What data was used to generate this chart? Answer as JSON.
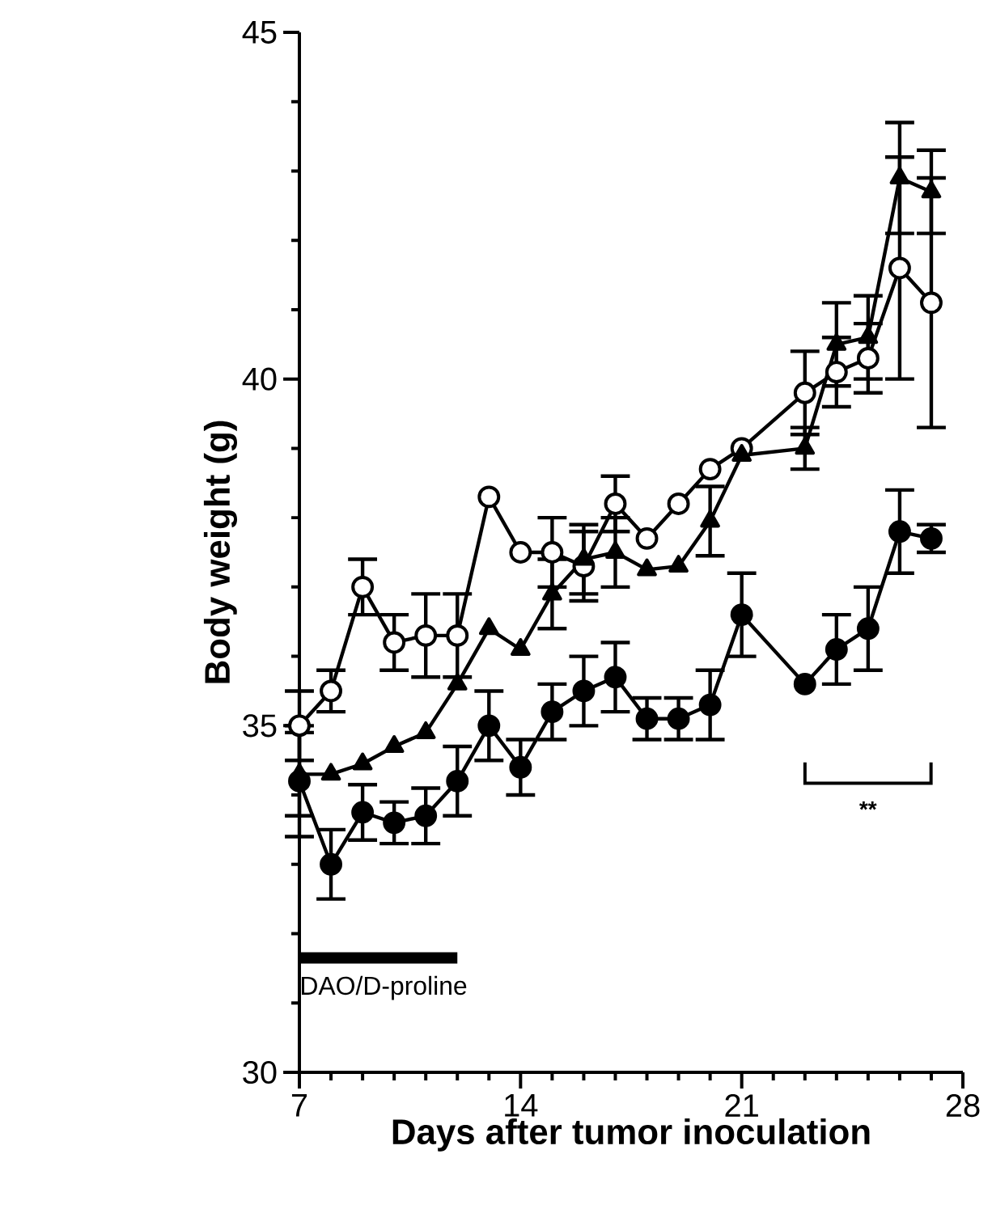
{
  "chart_data": {
    "type": "line",
    "xlabel": "Days after tumor inoculation",
    "ylabel": "Body weight (g)",
    "x": [
      7,
      8,
      9,
      10,
      11,
      12,
      13,
      14,
      15,
      16,
      17,
      18,
      19,
      20,
      21,
      23,
      24,
      25,
      26,
      27
    ],
    "series": [
      {
        "color": "#000000",
        "marker": "circle",
        "values": [
          35.0,
          35.5,
          37.0,
          36.2,
          36.3,
          36.3,
          38.3,
          37.5,
          37.5,
          37.3,
          38.2,
          37.7,
          38.2,
          38.7,
          39.0,
          39.8,
          40.1,
          40.3,
          41.6,
          41.1
        ],
        "errors": [
          0.5,
          0.3,
          0.4,
          0.4,
          0.6,
          0.6,
          null,
          null,
          0.5,
          0.5,
          0.4,
          null,
          null,
          null,
          null,
          0.6,
          0.5,
          0.5,
          1.6,
          1.8
        ]
      },
      {
        "color": "#000000",
        "marker": "triangle",
        "values": [
          34.3,
          34.3,
          34.45,
          34.7,
          34.9,
          35.6,
          36.4,
          36.1,
          36.9,
          37.4,
          37.5,
          37.25,
          37.3,
          37.95,
          38.9,
          39.0,
          40.5,
          40.6,
          42.9,
          42.7
        ],
        "errors": [
          0.6,
          null,
          null,
          null,
          null,
          null,
          null,
          null,
          0.5,
          0.5,
          0.5,
          null,
          null,
          0.5,
          null,
          0.3,
          0.6,
          0.6,
          0.8,
          0.6
        ]
      },
      {
        "color": "#000000",
        "marker": "circle",
        "values": [
          34.2,
          33.0,
          33.75,
          33.6,
          33.7,
          34.2,
          35.0,
          34.4,
          35.2,
          35.5,
          35.7,
          35.1,
          35.1,
          35.3,
          36.6,
          35.6,
          36.1,
          36.4,
          37.8,
          37.7
        ],
        "errors": [
          0.8,
          0.5,
          0.4,
          0.3,
          0.4,
          0.5,
          0.5,
          0.4,
          0.4,
          0.5,
          0.5,
          0.3,
          0.3,
          0.5,
          0.6,
          null,
          0.5,
          0.6,
          0.6,
          0.2
        ]
      },
      {
        "color": "#000000",
        "marker": "none",
        "x": [
          7,
          12
        ],
        "values": [
          31.65,
          31.65
        ]
      }
    ],
    "xlim": [
      7,
      28
    ],
    "xticks": [
      7,
      14,
      21,
      28
    ],
    "ylim": [
      30,
      45
    ],
    "yticks": [
      30,
      35,
      40,
      45
    ],
    "line_style": "solid",
    "annotations": [
      "DAO/D-proline",
      "**"
    ]
  }
}
